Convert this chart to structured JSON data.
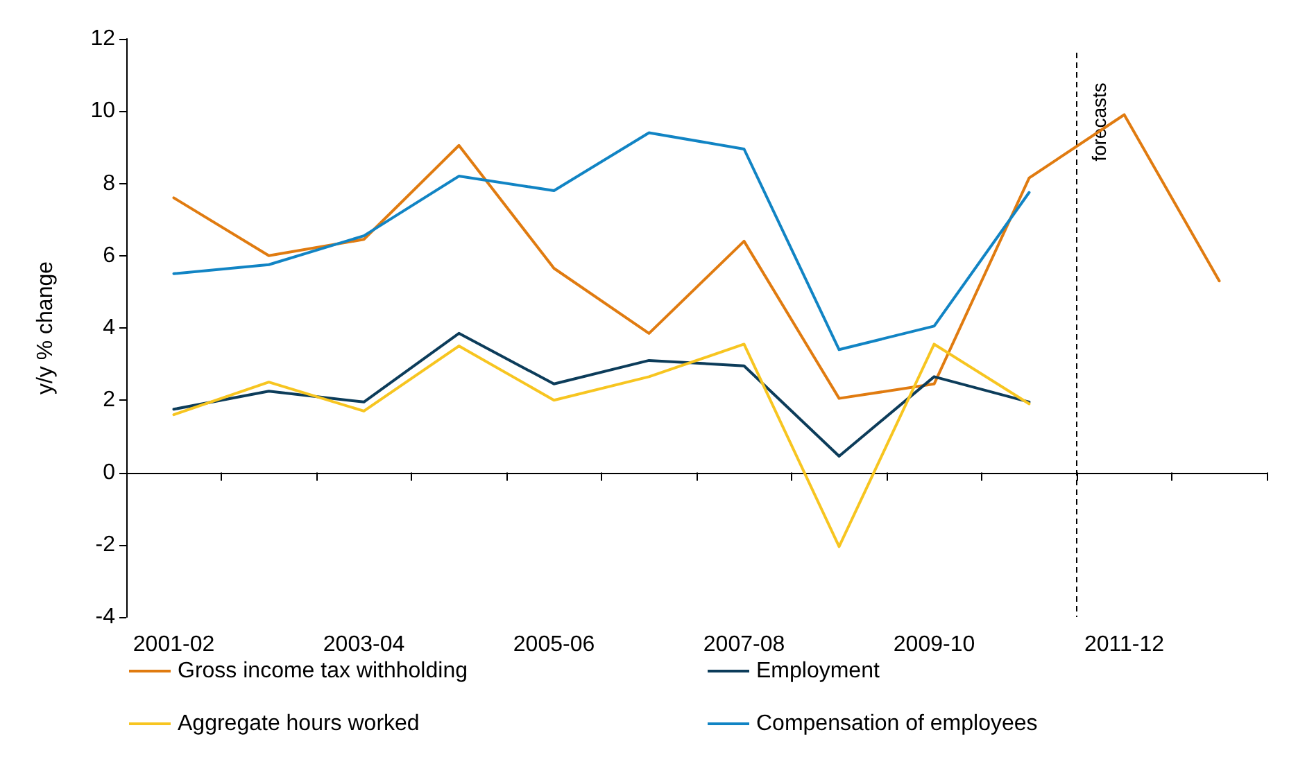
{
  "chart_data": {
    "type": "line",
    "ylabel": "y/y % change",
    "categories": [
      "2001-02",
      null,
      "2003-04",
      null,
      "2005-06",
      null,
      "2007-08",
      null,
      "2009-10",
      null,
      "2011-12",
      null
    ],
    "series": [
      {
        "name": "Gross income tax withholding",
        "color": "#e07b10",
        "values": [
          7.6,
          6.0,
          6.45,
          9.05,
          5.65,
          3.85,
          6.4,
          2.05,
          2.45,
          8.15,
          9.9,
          5.3
        ]
      },
      {
        "name": "Employment",
        "color": "#0c3c5a",
        "values": [
          1.75,
          2.25,
          1.95,
          3.85,
          2.45,
          3.1,
          2.95,
          0.45,
          2.65,
          1.95,
          null,
          null
        ]
      },
      {
        "name": "Aggregate hours worked",
        "color": "#f7c520",
        "values": [
          1.6,
          2.5,
          1.7,
          3.5,
          2.0,
          2.65,
          3.55,
          -2.05,
          3.55,
          1.9,
          null,
          null
        ]
      },
      {
        "name": "Compensation of employees",
        "color": "#1184c4",
        "values": [
          5.5,
          5.75,
          6.55,
          8.2,
          7.8,
          9.4,
          8.95,
          3.4,
          4.05,
          7.75,
          null,
          null
        ]
      }
    ],
    "ylim": [
      -4,
      12
    ],
    "yticks": [
      -4,
      -2,
      0,
      2,
      4,
      6,
      8,
      10,
      12
    ],
    "ref_lines": [
      {
        "axis": "x",
        "value": "2011-12",
        "label": "forecasts",
        "line_style": "dashed",
        "color": "#000000"
      }
    ],
    "grid": false,
    "legend": "bottom",
    "marker": "none",
    "line_style": "solid"
  }
}
